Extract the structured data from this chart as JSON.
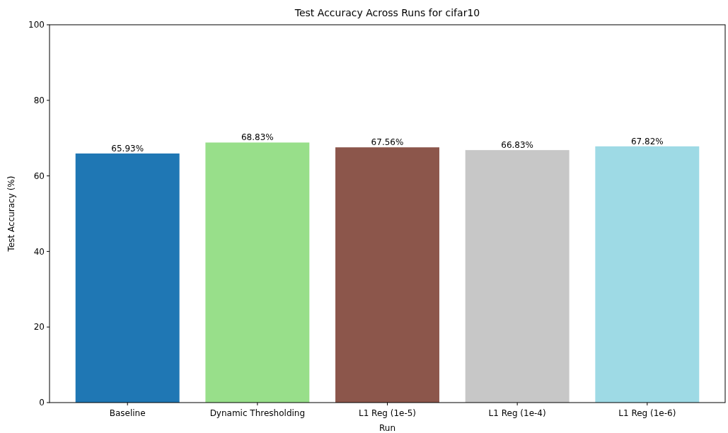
{
  "chart_data": {
    "type": "bar",
    "title": "Test Accuracy Across Runs for cifar10",
    "xlabel": "Run",
    "ylabel": "Test Accuracy (%)",
    "categories": [
      "Baseline",
      "Dynamic Thresholding",
      "L1 Reg (1e-5)",
      "L1 Reg (1e-4)",
      "L1 Reg (1e-6)"
    ],
    "values": [
      65.93,
      68.83,
      67.56,
      66.83,
      67.82
    ],
    "colors": [
      "#1f77b4",
      "#98df8a",
      "#8c564b",
      "#c7c7c7",
      "#9edae5"
    ],
    "value_labels": [
      "65.93%",
      "68.83%",
      "67.56%",
      "66.83%",
      "67.82%"
    ],
    "ylim": [
      0,
      100
    ],
    "yticks": [
      0,
      20,
      40,
      60,
      80,
      100
    ]
  }
}
